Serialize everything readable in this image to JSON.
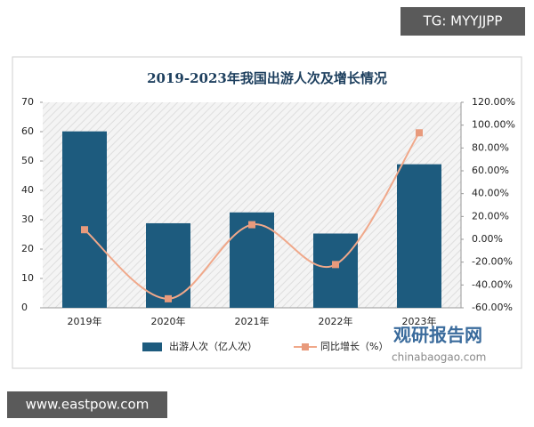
{
  "chart_data": {
    "type": "bar",
    "title": "2019-2023年我国出游人次及增长情况",
    "categories": [
      "2019年",
      "2020年",
      "2021年",
      "2022年",
      "2023年"
    ],
    "series": [
      {
        "name": "出游人次（亿人次）",
        "type": "bar",
        "color": "#1d5b7e",
        "values": [
          60.1,
          28.8,
          32.5,
          25.3,
          48.9
        ]
      },
      {
        "name": "同比增长（%）",
        "type": "line",
        "axis": "y2",
        "color": "#f0a88a",
        "values": [
          8.4,
          -52.1,
          12.8,
          -22.1,
          93.3
        ]
      }
    ],
    "ylim": [
      0,
      70
    ],
    "yticks": [
      0,
      10,
      20,
      30,
      40,
      50,
      60,
      70
    ],
    "y2lim": [
      -60,
      120
    ],
    "y2ticks": [
      {
        "value": -60,
        "label": "-60.00%"
      },
      {
        "value": -40,
        "label": "-40.00%"
      },
      {
        "value": -20,
        "label": "-20.00%"
      },
      {
        "value": 0,
        "label": "0.00%"
      },
      {
        "value": 20,
        "label": "20.00%"
      },
      {
        "value": 40,
        "label": "40.00%"
      },
      {
        "value": 60,
        "label": "60.00%"
      },
      {
        "value": 80,
        "label": "80.00%"
      },
      {
        "value": 100,
        "label": "100.00%"
      },
      {
        "value": 120,
        "label": "120.00%"
      }
    ],
    "legend": "bottom"
  },
  "watermarks": {
    "top_right": "TG: MYYJJPP",
    "bottom_left": "www.eastpow.com",
    "logo": "观研报告网",
    "logo_url": "chinabaogao.com"
  }
}
